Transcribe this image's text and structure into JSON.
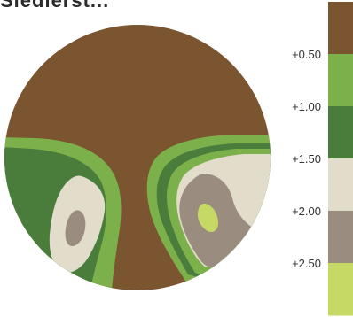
{
  "title": "Siedlerst...",
  "chart_data": {
    "type": "heatmap",
    "title": "",
    "xlabel": "",
    "ylabel": "",
    "legend": {
      "placement": "right",
      "ticks": [
        "+0.50",
        "+1.00",
        "+1.50",
        "+2.00",
        "+2.50"
      ],
      "bins": [
        {
          "range": "< +0.50",
          "color": "#7a5530"
        },
        {
          "range": "+0.50 to +1.00",
          "color": "#7cb04a"
        },
        {
          "range": "+1.00 to +1.50",
          "color": "#4a7d3c"
        },
        {
          "range": "+1.50 to +2.00",
          "color": "#e2dccb"
        },
        {
          "range": "+2.00 to +2.50",
          "color": "#9a8d7f"
        },
        {
          "range": "> +2.50",
          "color": "#c6d965"
        }
      ]
    }
  }
}
